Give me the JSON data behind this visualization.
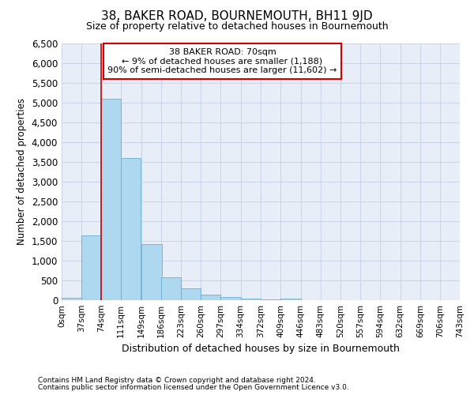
{
  "title": "38, BAKER ROAD, BOURNEMOUTH, BH11 9JD",
  "subtitle": "Size of property relative to detached houses in Bournemouth",
  "xlabel": "Distribution of detached houses by size in Bournemouth",
  "ylabel": "Number of detached properties",
  "footnote1": "Contains HM Land Registry data © Crown copyright and database right 2024.",
  "footnote2": "Contains public sector information licensed under the Open Government Licence v3.0.",
  "annotation_title": "38 BAKER ROAD: 70sqm",
  "annotation_line1": "← 9% of detached houses are smaller (1,188)",
  "annotation_line2": "90% of semi-detached houses are larger (11,602) →",
  "bar_left_edges": [
    0,
    37,
    74,
    111,
    149,
    186,
    223,
    260,
    297,
    334,
    372,
    409,
    446,
    483,
    520,
    557,
    594,
    632,
    669,
    706
  ],
  "bar_widths": [
    37,
    37,
    37,
    37,
    38,
    37,
    37,
    37,
    37,
    38,
    37,
    37,
    37,
    37,
    37,
    37,
    38,
    37,
    37,
    37
  ],
  "bar_heights": [
    70,
    1650,
    5100,
    3600,
    1430,
    580,
    300,
    150,
    80,
    50,
    30,
    50,
    0,
    0,
    0,
    0,
    0,
    0,
    0,
    0
  ],
  "tick_labels": [
    "0sqm",
    "37sqm",
    "74sqm",
    "111sqm",
    "149sqm",
    "186sqm",
    "223sqm",
    "260sqm",
    "297sqm",
    "334sqm",
    "372sqm",
    "409sqm",
    "446sqm",
    "483sqm",
    "520sqm",
    "557sqm",
    "594sqm",
    "632sqm",
    "669sqm",
    "706sqm",
    "743sqm"
  ],
  "tick_positions": [
    0,
    37,
    74,
    111,
    149,
    186,
    223,
    260,
    297,
    334,
    372,
    409,
    446,
    483,
    520,
    557,
    594,
    632,
    669,
    706,
    743
  ],
  "ylim": [
    0,
    6500
  ],
  "xlim": [
    0,
    743
  ],
  "yticks": [
    0,
    500,
    1000,
    1500,
    2000,
    2500,
    3000,
    3500,
    4000,
    4500,
    5000,
    5500,
    6000,
    6500
  ],
  "bar_color": "#add8f0",
  "bar_edge_color": "#6baed6",
  "red_line_color": "#cc0000",
  "grid_color": "#c8d4e8",
  "background_color": "#e8eef8",
  "annotation_box_color": "#ffffff",
  "annotation_border_color": "#cc0000",
  "fig_bg": "#ffffff"
}
